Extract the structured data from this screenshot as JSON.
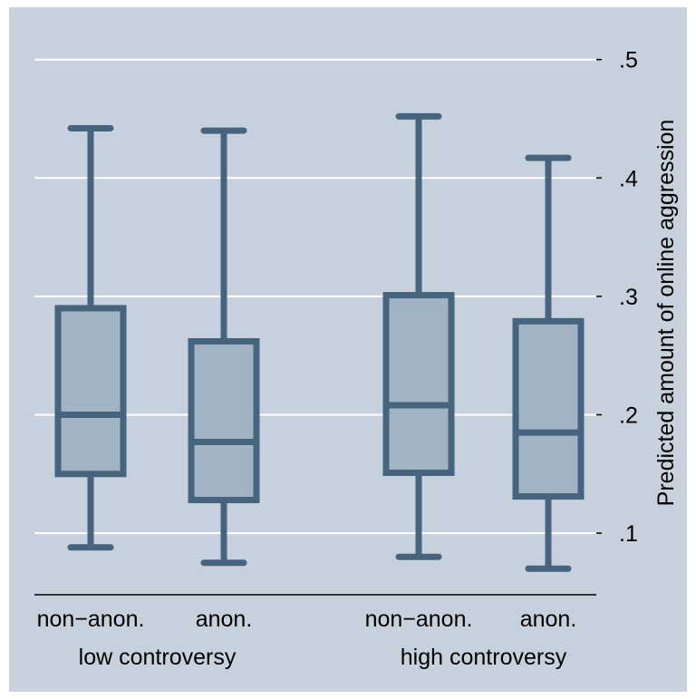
{
  "chart_data": {
    "type": "boxplot",
    "title": "",
    "ylabel": "Predicted amount of online aggression",
    "y_axis_position": "right",
    "ylim": [
      0.048,
      0.535
    ],
    "yticks": [
      {
        "value": 0.1,
        "label": ".1"
      },
      {
        "value": 0.2,
        "label": ".2"
      },
      {
        "value": 0.3,
        "label": ".3"
      },
      {
        "value": 0.4,
        "label": ".4"
      },
      {
        "value": 0.5,
        "label": ".5"
      }
    ],
    "grid": true,
    "groups": [
      {
        "label": "low controversy",
        "boxes": [
          {
            "label": "non−anon.",
            "whisker_low": 0.088,
            "q1": 0.15,
            "median": 0.2,
            "q3": 0.29,
            "whisker_high": 0.442
          },
          {
            "label": "anon.",
            "whisker_low": 0.075,
            "q1": 0.128,
            "median": 0.177,
            "q3": 0.262,
            "whisker_high": 0.44
          }
        ]
      },
      {
        "label": "high controversy",
        "boxes": [
          {
            "label": "non−anon.",
            "whisker_low": 0.08,
            "q1": 0.151,
            "median": 0.208,
            "q3": 0.301,
            "whisker_high": 0.452
          },
          {
            "label": "anon.",
            "whisker_low": 0.07,
            "q1": 0.131,
            "median": 0.185,
            "q3": 0.279,
            "whisker_high": 0.417
          }
        ]
      }
    ],
    "colors": {
      "background": "#c7d1dd",
      "box_fill": "#a2b4c3",
      "box_stroke": "#46647e",
      "grid": "#ffffff",
      "axis": "#000000"
    }
  }
}
